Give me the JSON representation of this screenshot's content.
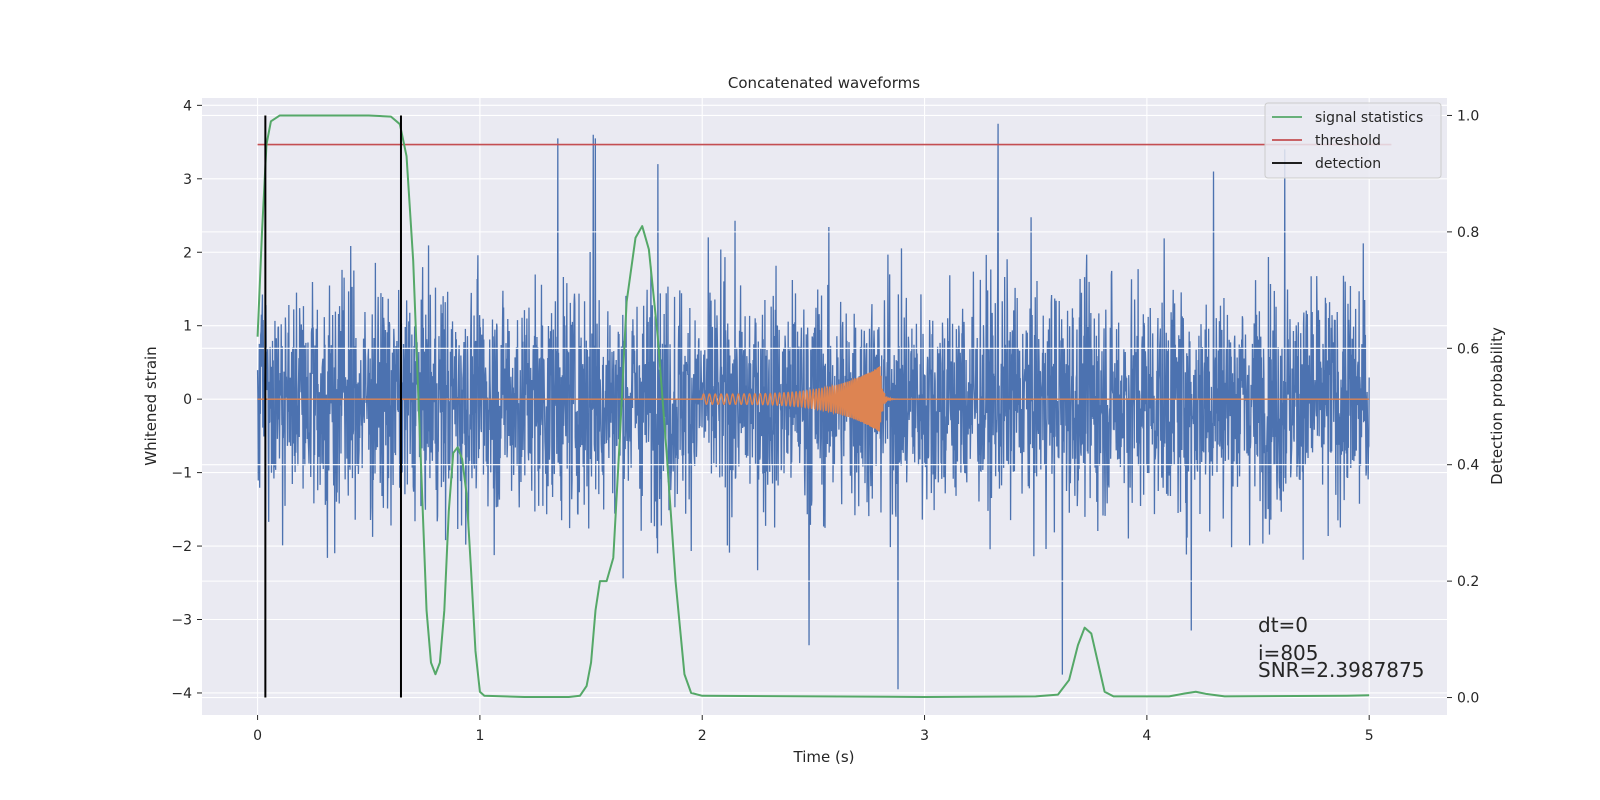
{
  "chart_data": {
    "type": "line",
    "title": "Concatenated waveforms",
    "xlabel": "Time (s)",
    "ylabel": "Whitened strain",
    "y2label": "Detection probability",
    "xlim": [
      -0.25,
      5.35
    ],
    "ylim": [
      -4.3,
      4.1
    ],
    "y2lim": [
      -0.03,
      1.03
    ],
    "x_ticks": [
      0,
      1,
      2,
      3,
      4,
      5
    ],
    "x_tick_labels": [
      "0",
      "1",
      "2",
      "3",
      "4",
      "5"
    ],
    "y_ticks": [
      -4,
      -3,
      -2,
      -1,
      0,
      1,
      2,
      3,
      4
    ],
    "y_tick_labels": [
      "−4",
      "−3",
      "−2",
      "−1",
      "0",
      "1",
      "2",
      "3",
      "4"
    ],
    "y2_ticks": [
      0.0,
      0.2,
      0.4,
      0.6,
      0.8,
      1.0
    ],
    "y2_tick_labels": [
      "0.0",
      "0.2",
      "0.4",
      "0.6",
      "0.8",
      "1.0"
    ],
    "grid": true,
    "legend_position": "top-right",
    "series": [
      {
        "role": "whitened-strain",
        "color": "#4c72b0",
        "axis": "left",
        "x_range": [
          0,
          5
        ],
        "typical_amplitude": 1.8,
        "peak_values": [
          {
            "x": 1.35,
            "y": 3.55
          },
          {
            "x": 1.51,
            "y": 3.6
          },
          {
            "x": 1.52,
            "y": 3.55
          },
          {
            "x": 1.8,
            "y": 3.2
          },
          {
            "x": 2.88,
            "y": -3.95
          },
          {
            "x": 2.48,
            "y": -3.35
          },
          {
            "x": 3.33,
            "y": 3.75
          },
          {
            "x": 3.62,
            "y": -3.75
          },
          {
            "x": 4.2,
            "y": -3.15
          },
          {
            "x": 4.62,
            "y": 3.4
          },
          {
            "x": 4.3,
            "y": 3.1
          }
        ]
      },
      {
        "role": "injected-waveform",
        "color": "#dd8452",
        "axis": "left",
        "chirp_start": 2.0,
        "chirp_end": 2.8,
        "start_amplitude": 0.07,
        "peak_amplitude": 0.45
      },
      {
        "name": "signal statistics",
        "color": "#55a868",
        "axis": "right",
        "points": [
          [
            0.0,
            0.62
          ],
          [
            0.02,
            0.8
          ],
          [
            0.04,
            0.95
          ],
          [
            0.06,
            0.99
          ],
          [
            0.1,
            1.0
          ],
          [
            0.3,
            1.0
          ],
          [
            0.5,
            1.0
          ],
          [
            0.6,
            0.998
          ],
          [
            0.64,
            0.985
          ],
          [
            0.67,
            0.93
          ],
          [
            0.7,
            0.75
          ],
          [
            0.73,
            0.45
          ],
          [
            0.76,
            0.15
          ],
          [
            0.78,
            0.06
          ],
          [
            0.8,
            0.04
          ],
          [
            0.82,
            0.06
          ],
          [
            0.84,
            0.15
          ],
          [
            0.86,
            0.32
          ],
          [
            0.88,
            0.42
          ],
          [
            0.9,
            0.43
          ],
          [
            0.92,
            0.41
          ],
          [
            0.94,
            0.35
          ],
          [
            0.96,
            0.22
          ],
          [
            0.98,
            0.08
          ],
          [
            1.0,
            0.01
          ],
          [
            1.02,
            0.003
          ],
          [
            1.2,
            0.001
          ],
          [
            1.4,
            0.001
          ],
          [
            1.45,
            0.003
          ],
          [
            1.48,
            0.02
          ],
          [
            1.5,
            0.06
          ],
          [
            1.52,
            0.15
          ],
          [
            1.54,
            0.2
          ],
          [
            1.57,
            0.2
          ],
          [
            1.6,
            0.24
          ],
          [
            1.63,
            0.45
          ],
          [
            1.66,
            0.68
          ],
          [
            1.7,
            0.79
          ],
          [
            1.73,
            0.81
          ],
          [
            1.76,
            0.77
          ],
          [
            1.8,
            0.62
          ],
          [
            1.84,
            0.42
          ],
          [
            1.88,
            0.2
          ],
          [
            1.92,
            0.04
          ],
          [
            1.95,
            0.008
          ],
          [
            2.0,
            0.003
          ],
          [
            2.5,
            0.002
          ],
          [
            3.0,
            0.001
          ],
          [
            3.5,
            0.002
          ],
          [
            3.6,
            0.005
          ],
          [
            3.65,
            0.03
          ],
          [
            3.69,
            0.09
          ],
          [
            3.72,
            0.12
          ],
          [
            3.75,
            0.11
          ],
          [
            3.78,
            0.06
          ],
          [
            3.81,
            0.01
          ],
          [
            3.85,
            0.002
          ],
          [
            4.1,
            0.002
          ],
          [
            4.17,
            0.007
          ],
          [
            4.22,
            0.01
          ],
          [
            4.27,
            0.006
          ],
          [
            4.35,
            0.002
          ],
          [
            4.9,
            0.003
          ],
          [
            5.0,
            0.004
          ]
        ]
      },
      {
        "name": "threshold",
        "color": "#c44e52",
        "axis": "right",
        "value": 0.95,
        "x_range": [
          0,
          5.1
        ]
      },
      {
        "name": "detection",
        "color": "#000000",
        "axis": "right",
        "x_values": [
          0.035,
          0.645
        ],
        "y_range": [
          0.0,
          1.0
        ]
      }
    ],
    "annotations": [
      "dt=0",
      "i=805",
      "SNR=2.3987875"
    ]
  }
}
